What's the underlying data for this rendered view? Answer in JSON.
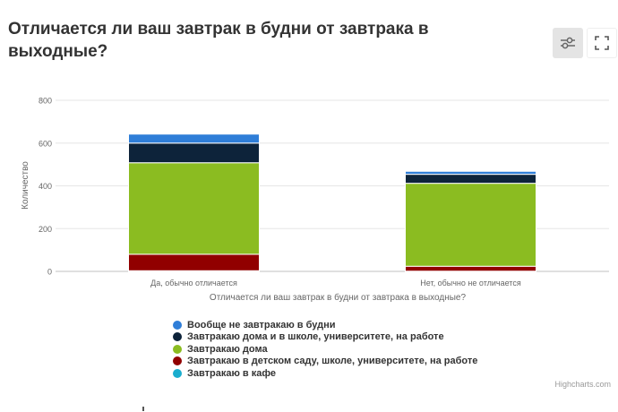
{
  "header": {
    "title": "Отличается ли ваш завтрак в будни от завтрака в выходные?",
    "filter_icon": "sliders-icon",
    "fullscreen_icon": "fullscreen-icon"
  },
  "credits": "Highcharts.com",
  "chart_data": {
    "type": "bar",
    "stacked": true,
    "title": "",
    "xlabel": "Отличается ли ваш завтрак в будни от завтрака в выходные?",
    "ylabel": "Количество",
    "ylim": [
      0,
      800
    ],
    "yticks": [
      0,
      200,
      400,
      600,
      800
    ],
    "grid": true,
    "legend_position": "bottom",
    "categories": [
      "Да, обычно отличается",
      "Нет, обычно не отличается"
    ],
    "series": [
      {
        "name": "Вообще не завтракаю в будни",
        "color": "#2f7ed8",
        "values": [
          42,
          14
        ]
      },
      {
        "name": "Завтракаю дома и в школе, университете, на работе",
        "color": "#0d233a",
        "values": [
          92,
          42
        ]
      },
      {
        "name": "Завтракаю дома",
        "color": "#8bbc21",
        "values": [
          428,
          388
        ]
      },
      {
        "name": "Завтракаю в детском саду, школе, университете, на работе",
        "color": "#910000",
        "values": [
          77,
          23
        ]
      },
      {
        "name": "Завтракаю в кафе",
        "color": "#1aadce",
        "values": [
          3,
          1
        ]
      }
    ],
    "stack_order_bottom_to_top": [
      "Завтракаю в кафе",
      "Завтракаю в детском саду, школе, университете, на работе",
      "Завтракаю дома",
      "Завтракаю дома и в школе, университете, на работе",
      "Вообще не завтракаю в будни"
    ]
  }
}
